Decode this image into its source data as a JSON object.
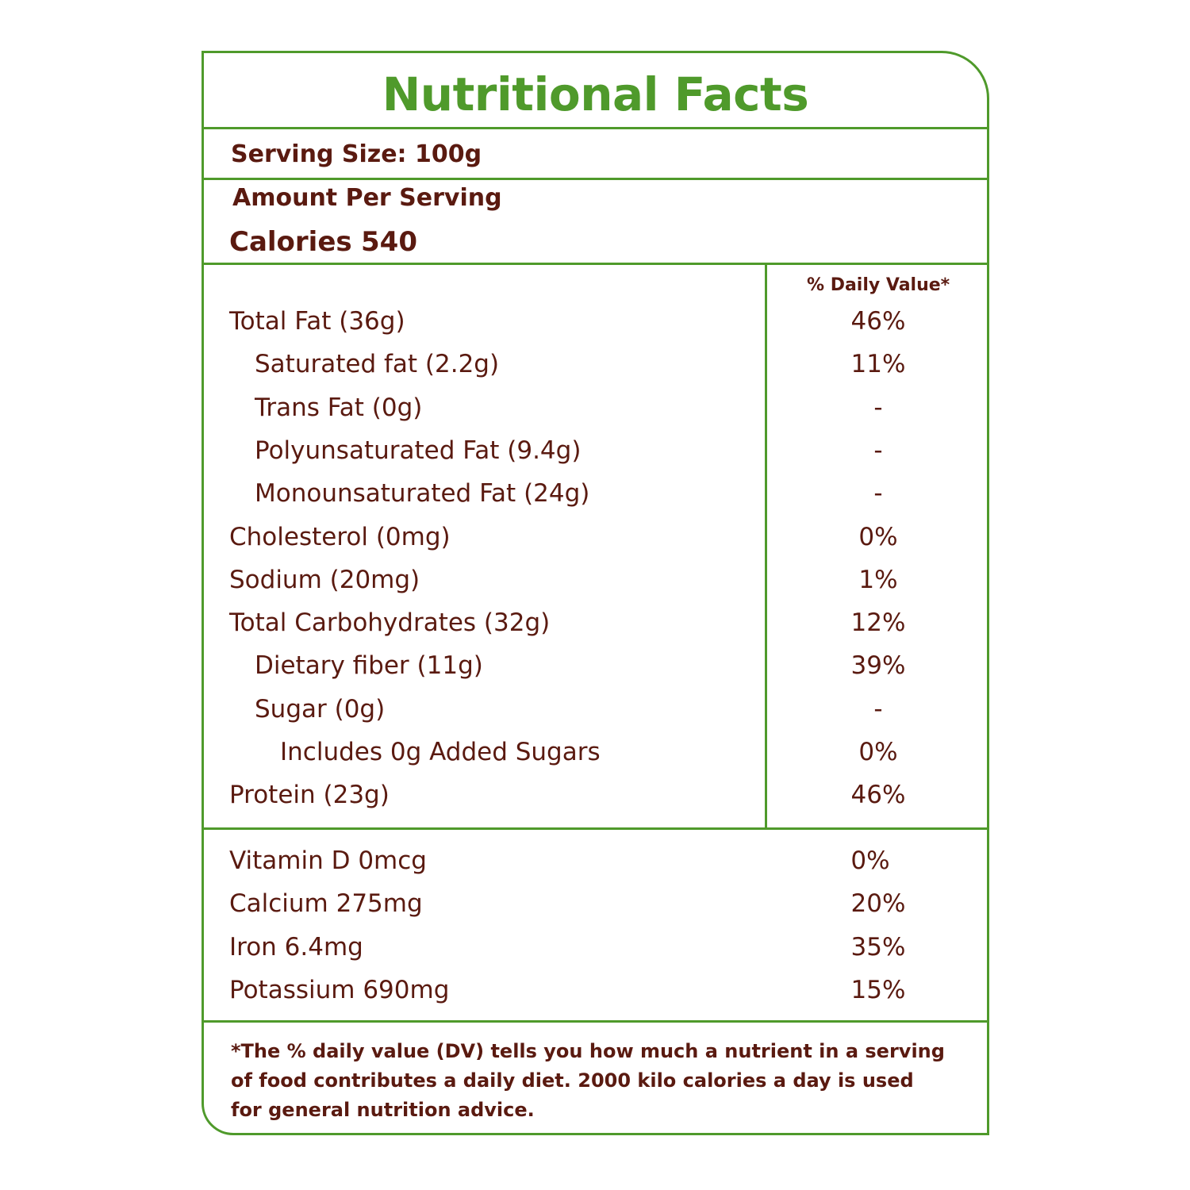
{
  "title": "Nutritional Facts",
  "serving_size": "Serving Size: 100g",
  "amount_per_serving": "Amount Per Serving",
  "calories_label": "Calories",
  "calories_value": "540",
  "dv_header": "% Daily Value*",
  "nutrients": [
    {
      "label": "Total Fat (36g)",
      "dv": "46%"
    },
    {
      "label": "Saturated fat (2.2g)",
      "dv": "11%"
    },
    {
      "label": "Trans Fat (0g)",
      "dv": "-"
    },
    {
      "label": "Polyunsaturated Fat (9.4g)",
      "dv": "-"
    },
    {
      "label": "Monounsaturated Fat (24g)",
      "dv": "-"
    },
    {
      "label": "Cholesterol (0mg)",
      "dv": "0%"
    },
    {
      "label": "Sodium (20mg)",
      "dv": "1%"
    },
    {
      "label": "Total Carbohydrates  (32g)",
      "dv": "12%"
    },
    {
      "label": "Dietary fiber (11g)",
      "dv": "39%"
    },
    {
      "label": "Sugar (0g)",
      "dv": "-"
    },
    {
      "label": "Includes 0g Added Sugars",
      "dv": "0%"
    },
    {
      "label": "Protein (23g)",
      "dv": "46%"
    }
  ],
  "minerals": [
    {
      "label": "Vitamin D 0mcg",
      "dv": "0%"
    },
    {
      "label": "Calcium 275mg",
      "dv": "20%"
    },
    {
      "label": "Iron 6.4mg",
      "dv": "35%"
    },
    {
      "label": "Potassium  690mg",
      "dv": "15%"
    }
  ],
  "footnote": "*The % daily value (DV) tells you how much a nutrient in a serving of food contributes a daily diet. 2000 kilo calories a day is used for general nutrition advice.",
  "colors": {
    "border": "#4f9a2b",
    "title": "#4f9a2b",
    "text": "#5a1a10"
  }
}
